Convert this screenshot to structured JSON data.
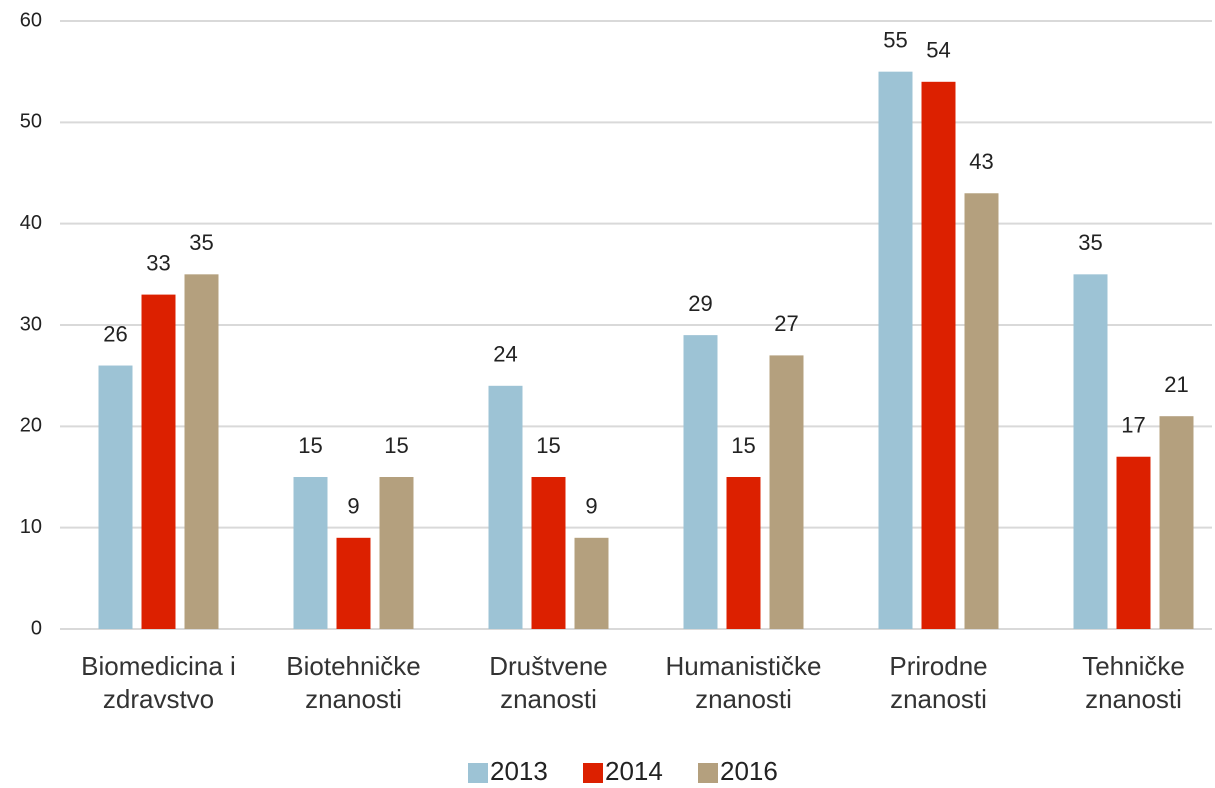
{
  "chart_data": {
    "type": "bar",
    "categories": [
      "Biomedicina i zdravstvo",
      "Biotehničke znanosti",
      "Društvene znanosti",
      "Humanističke znanosti",
      "Prirodne znanosti",
      "Tehničke znanosti"
    ],
    "series": [
      {
        "name": "2013",
        "color": "#9dc3d5",
        "values": [
          26,
          15,
          24,
          29,
          55,
          35
        ]
      },
      {
        "name": "2014",
        "color": "#dc2000",
        "values": [
          33,
          9,
          15,
          15,
          54,
          17
        ]
      },
      {
        "name": "2016",
        "color": "#b4a07e",
        "values": [
          35,
          15,
          9,
          27,
          43,
          21
        ]
      }
    ],
    "ylim": [
      0,
      60
    ],
    "yticks": [
      0,
      10,
      20,
      30,
      40,
      50,
      60
    ],
    "grid": true,
    "legend": "bottom"
  }
}
